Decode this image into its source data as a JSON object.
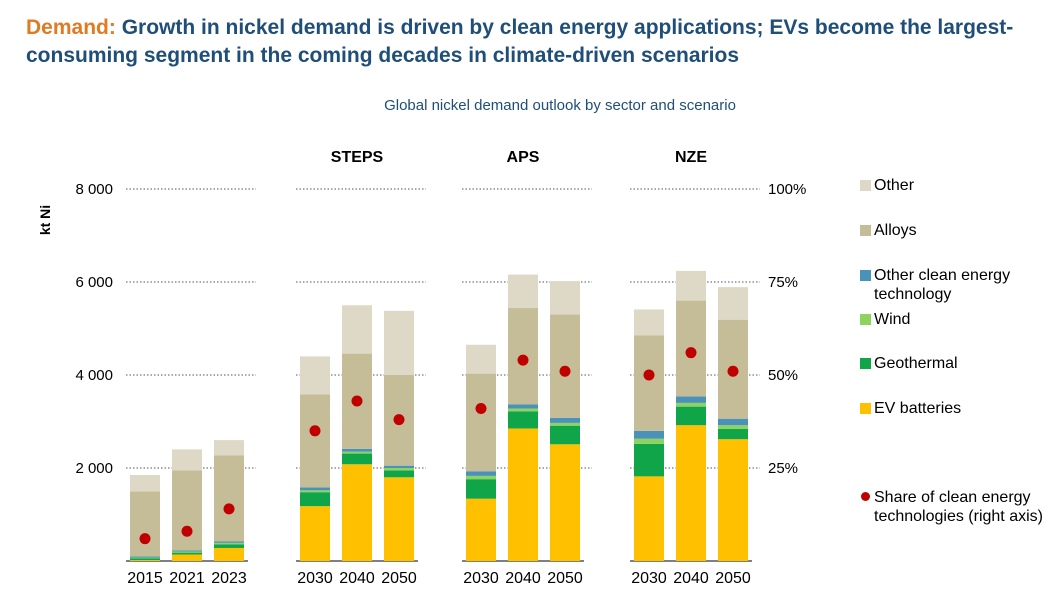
{
  "headline": {
    "lead": "Demand:",
    "text": " Growth in nickel demand is driven by clean energy applications; EVs become the largest-consuming segment in the coming decades in climate-driven scenarios"
  },
  "chart_data": {
    "type": "bar",
    "stacked": true,
    "title": "Global nickel demand outlook by sector and scenario",
    "ylabel": "kt Ni",
    "ylim": [
      0,
      8000
    ],
    "y_ticks": [
      "8 000",
      "6 000",
      "4 000",
      "2 000"
    ],
    "y2_ticks": [
      "100%",
      "75%",
      "50%",
      "25%"
    ],
    "y2lim": [
      0,
      100
    ],
    "groups": [
      {
        "name": "",
        "categories": [
          "2015",
          "2021",
          "2023"
        ]
      },
      {
        "name": "STEPS",
        "categories": [
          "2030",
          "2040",
          "2050"
        ]
      },
      {
        "name": "APS",
        "categories": [
          "2030",
          "2040",
          "2050"
        ]
      },
      {
        "name": "NZE",
        "categories": [
          "2030",
          "2040",
          "2050"
        ]
      }
    ],
    "series": [
      {
        "name": "EV batteries",
        "color": "#ffc000",
        "values": [
          20,
          140,
          280,
          1180,
          2080,
          1800,
          1340,
          2850,
          2510,
          1820,
          2920,
          2620
        ]
      },
      {
        "name": "Geothermal",
        "color": "#11a54a",
        "values": [
          40,
          40,
          80,
          300,
          230,
          150,
          420,
          370,
          400,
          700,
          400,
          220
        ]
      },
      {
        "name": "Wind",
        "color": "#8dd35f",
        "values": [
          15,
          25,
          30,
          40,
          40,
          50,
          70,
          60,
          60,
          110,
          80,
          80
        ]
      },
      {
        "name": "Other clean energy technology",
        "color": "#4b92b8",
        "values": [
          25,
          25,
          30,
          60,
          60,
          50,
          100,
          90,
          110,
          170,
          140,
          140
        ]
      },
      {
        "name": "Alloys",
        "color": "#c5bc98",
        "values": [
          1400,
          1720,
          1850,
          2000,
          2050,
          1950,
          2100,
          2070,
          2220,
          2050,
          2060,
          2130
        ]
      },
      {
        "name": "Other",
        "color": "#ded9c6",
        "values": [
          350,
          450,
          330,
          820,
          1040,
          1380,
          620,
          720,
          720,
          560,
          640,
          700
        ]
      }
    ],
    "share_series": {
      "name": "Share of clean energy technologies (right axis)",
      "color": "#c00000",
      "values": [
        6,
        8,
        14,
        35,
        43,
        38,
        41,
        54,
        51,
        50,
        56,
        51
      ]
    },
    "legend": [
      "Other",
      "Alloys",
      "Other clean energy technology",
      "Wind",
      "Geothermal",
      "EV batteries",
      "Share of clean energy technologies (right axis)"
    ],
    "legend_position": "right"
  }
}
